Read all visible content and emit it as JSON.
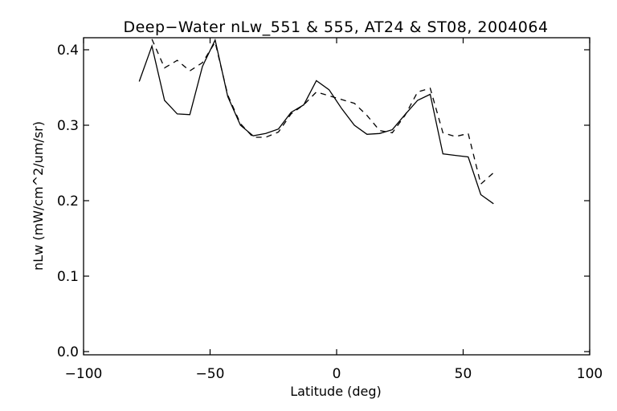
{
  "chart_data": {
    "type": "line",
    "title": "Deep−Water nLw_551 & 555, AT24 & ST08, 2004064",
    "xlabel": "Latitude (deg)",
    "ylabel": "nLw (mW/cm^2/um/sr)",
    "xlim": [
      -100,
      100
    ],
    "ylim": [
      0.0,
      0.42
    ],
    "xticks": [
      -100,
      -50,
      0,
      50,
      100
    ],
    "xtick_labels": [
      "−100",
      "−50",
      "0",
      "50",
      "100"
    ],
    "yticks": [
      0.0,
      0.1,
      0.2,
      0.3,
      0.4
    ],
    "ytick_labels": [
      "0.0",
      "0.1",
      "0.2",
      "0.3",
      "0.4"
    ],
    "grid": false,
    "series": [
      {
        "style": "solid",
        "color": "#000000",
        "x": [
          -78,
          -73,
          -68,
          -63,
          -58,
          -53,
          -48,
          -43,
          -38,
          -33,
          -28,
          -23,
          -18,
          -13,
          -8,
          -3,
          2,
          7,
          12,
          17,
          22,
          27,
          32,
          37,
          42,
          47,
          52,
          57,
          62
        ],
        "y": [
          0.358,
          0.405,
          0.333,
          0.315,
          0.314,
          0.378,
          0.413,
          0.338,
          0.3,
          0.286,
          0.289,
          0.295,
          0.317,
          0.327,
          0.359,
          0.347,
          0.322,
          0.3,
          0.288,
          0.289,
          0.294,
          0.314,
          0.333,
          0.341,
          0.262,
          0.26,
          0.258,
          0.208,
          0.196
        ]
      },
      {
        "style": "dashed",
        "color": "#000000",
        "x": [
          -73,
          -68,
          -63,
          -58,
          -53,
          -48,
          -43,
          -38,
          -33,
          -28,
          -23,
          -18,
          -13,
          -8,
          -3,
          2,
          7,
          12,
          17,
          22,
          27,
          32,
          37,
          42,
          47,
          52,
          57,
          62
        ],
        "y": [
          0.414,
          0.376,
          0.386,
          0.372,
          0.383,
          0.41,
          0.34,
          0.302,
          0.284,
          0.284,
          0.291,
          0.315,
          0.327,
          0.344,
          0.339,
          0.334,
          0.329,
          0.313,
          0.293,
          0.29,
          0.313,
          0.344,
          0.349,
          0.29,
          0.285,
          0.289,
          0.222,
          0.237
        ]
      }
    ]
  }
}
